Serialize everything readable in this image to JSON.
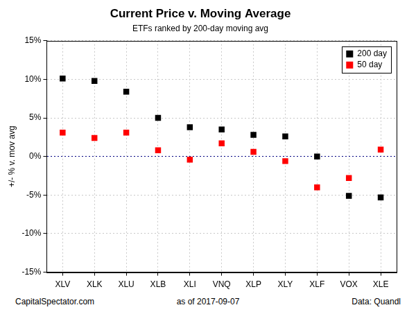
{
  "chart_data": {
    "type": "scatter",
    "title": "Current Price v. Moving Average",
    "subtitle": "ETFs ranked by 200-day moving avg",
    "y_label": "+/- % v. mov avg",
    "annotations": [
      "CapitalSpectator.com",
      "as of 2017-09-07",
      "Data: Quandl"
    ],
    "categories": [
      "XLV",
      "XLK",
      "XLU",
      "XLB",
      "XLI",
      "VNQ",
      "XLP",
      "XLY",
      "XLF",
      "VOX",
      "XLE"
    ],
    "series": [
      {
        "name": "200 day",
        "color": "#000000",
        "marker": "square",
        "values": [
          10.1,
          9.8,
          8.4,
          5.0,
          3.8,
          3.5,
          2.8,
          2.6,
          0.0,
          -5.1,
          -5.3
        ]
      },
      {
        "name": "50 day",
        "color": "#ff0000",
        "marker": "square",
        "values": [
          3.1,
          2.4,
          3.1,
          0.8,
          -0.4,
          1.7,
          0.6,
          -0.6,
          -4.0,
          -2.8,
          0.9
        ]
      }
    ],
    "ylim": [
      -15,
      15
    ],
    "yticks": [
      {
        "value": -15,
        "label": "-15%"
      },
      {
        "value": -10,
        "label": "-10%"
      },
      {
        "value": -5,
        "label": "-5%"
      },
      {
        "value": 0,
        "label": "0%"
      },
      {
        "value": 5,
        "label": "5%"
      },
      {
        "value": 10,
        "label": "10%"
      },
      {
        "value": 15,
        "label": "15%"
      }
    ],
    "grid": true,
    "legend": "upper right"
  }
}
